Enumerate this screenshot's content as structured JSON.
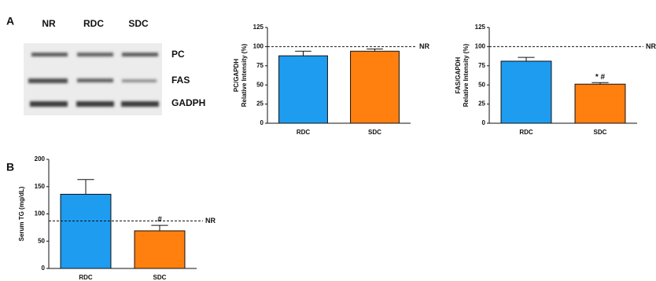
{
  "panels": {
    "a": "A",
    "b": "B"
  },
  "blot": {
    "columns": [
      "NR",
      "RDC",
      "SDC"
    ],
    "rows": [
      "PC",
      "FAS",
      "GADPH"
    ]
  },
  "chart_data": [
    {
      "type": "bar",
      "y_label": [
        "PC/GAPDH",
        "Relative Intensity (%)"
      ],
      "categories": [
        "RDC",
        "SDC"
      ],
      "values": [
        88,
        94
      ],
      "errors": [
        6,
        3
      ],
      "colors": [
        "#1e9cf0",
        "#ff7f0f"
      ],
      "ylim": [
        0,
        125
      ],
      "yticks": [
        0,
        25,
        50,
        75,
        100,
        125
      ],
      "reference": {
        "value": 100,
        "label": "NR"
      },
      "value_annotations": [
        null,
        null
      ]
    },
    {
      "type": "bar",
      "y_label": [
        "FAS/GAPDH",
        "Relative Intensity (%)"
      ],
      "categories": [
        "RDC",
        "SDC"
      ],
      "values": [
        81,
        51
      ],
      "errors": [
        5,
        2
      ],
      "colors": [
        "#1e9cf0",
        "#ff7f0f"
      ],
      "ylim": [
        0,
        125
      ],
      "yticks": [
        0,
        25,
        50,
        75,
        100,
        125
      ],
      "reference": {
        "value": 100,
        "label": "NR"
      },
      "value_annotations": [
        null,
        "* #"
      ]
    },
    {
      "type": "bar",
      "y_label": [
        "Serum TG (mg/dL)"
      ],
      "categories": [
        "RDC",
        "SDC"
      ],
      "values": [
        136,
        69
      ],
      "errors": [
        27,
        10
      ],
      "colors": [
        "#1e9cf0",
        "#ff7f0f"
      ],
      "ylim": [
        0,
        200
      ],
      "yticks": [
        0,
        50,
        100,
        150,
        200
      ],
      "reference": {
        "value": 87,
        "label": "NR"
      },
      "value_annotations": [
        null,
        "#"
      ]
    }
  ]
}
